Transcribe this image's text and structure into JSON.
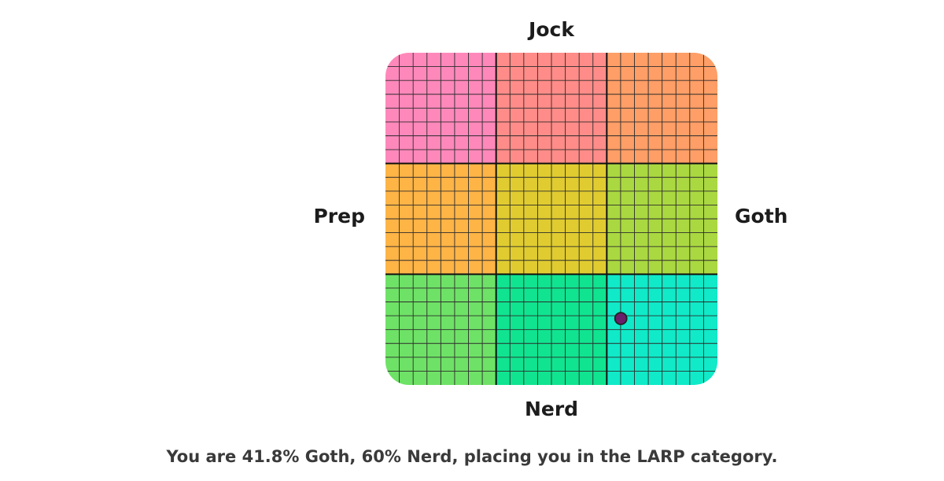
{
  "chart_data": {
    "type": "scatter",
    "title": "",
    "axes": {
      "top": "Jock",
      "bottom": "Nerd",
      "left": "Prep",
      "right": "Goth"
    },
    "xlim": [
      -100,
      100
    ],
    "ylim": [
      -100,
      100
    ],
    "grid": true,
    "cells_per_region": 8,
    "regions": [
      {
        "row": 0,
        "col": 0,
        "color": "#ff88bb"
      },
      {
        "row": 0,
        "col": 1,
        "color": "#ff8c88"
      },
      {
        "row": 0,
        "col": 2,
        "color": "#ff9e66"
      },
      {
        "row": 1,
        "col": 0,
        "color": "#ffb446"
      },
      {
        "row": 1,
        "col": 1,
        "color": "#e0cc30"
      },
      {
        "row": 1,
        "col": 2,
        "color": "#aad840"
      },
      {
        "row": 2,
        "col": 0,
        "color": "#6ee266"
      },
      {
        "row": 2,
        "col": 1,
        "color": "#10e490"
      },
      {
        "row": 2,
        "col": 2,
        "color": "#10eac8"
      }
    ],
    "point": {
      "x": 41.8,
      "y": -60,
      "color": "#6a1f6a"
    }
  },
  "result_text": "You are 41.8% Goth, 60% Nerd, placing you in the LARP category."
}
